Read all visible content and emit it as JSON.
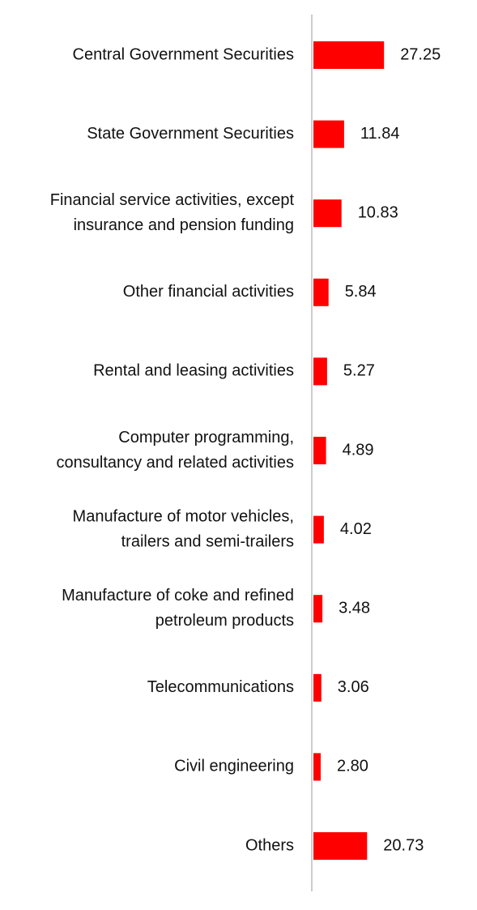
{
  "chart_data": {
    "type": "bar",
    "orientation": "horizontal",
    "categories": [
      [
        "Central Government Securities"
      ],
      [
        "State Government Securities"
      ],
      [
        "Financial service activities, except",
        "insurance and pension funding"
      ],
      [
        "Other financial activities"
      ],
      [
        "Rental and leasing activities"
      ],
      [
        "Computer programming,",
        "consultancy and related activities"
      ],
      [
        "Manufacture of motor vehicles,",
        "trailers and semi-trailers"
      ],
      [
        "Manufacture of coke and refined",
        "petroleum products"
      ],
      [
        "Telecommunications"
      ],
      [
        "Civil engineering"
      ],
      [
        "Others"
      ]
    ],
    "values": [
      27.25,
      11.84,
      10.83,
      5.84,
      5.27,
      4.89,
      4.02,
      3.48,
      3.06,
      2.8,
      20.73
    ],
    "value_labels": [
      "27.25",
      "11.84",
      "10.83",
      "5.84",
      "5.27",
      "4.89",
      "4.02",
      "3.48",
      "3.06",
      "2.80",
      "20.73"
    ],
    "title": "",
    "xlabel": "",
    "ylabel": "",
    "grid": false,
    "legend": "none",
    "colors": {
      "bar": "#ff0000",
      "axis": "#cccccc",
      "text": "#111111"
    }
  }
}
